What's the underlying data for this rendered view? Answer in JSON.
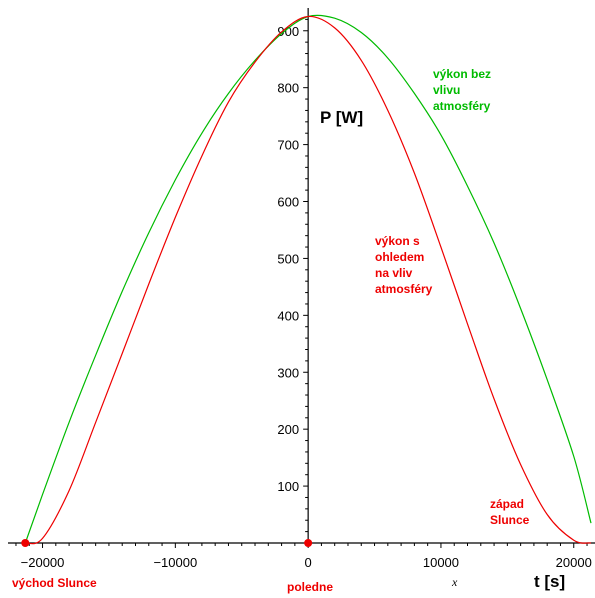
{
  "chart_data": {
    "type": "line",
    "xlabel": "t [s]",
    "ylabel": "P [W]",
    "x_variable_label": "x",
    "xlim": [
      -22600,
      21600
    ],
    "ylim": [
      0,
      940
    ],
    "x_ticks": [
      -20000,
      -10000,
      0,
      10000,
      20000
    ],
    "x_tick_labels": [
      "−20000",
      "−10000",
      "0",
      "10000",
      "20000"
    ],
    "y_ticks": [
      100,
      200,
      300,
      400,
      500,
      600,
      700,
      800,
      900
    ],
    "y_tick_labels": [
      "100",
      "200",
      "300",
      "400",
      "500",
      "600",
      "700",
      "800",
      "900"
    ],
    "grid": false,
    "series": [
      {
        "color": "#00bb00",
        "x": [
          -21300,
          -20000,
          -18000,
          -16000,
          -14000,
          -12000,
          -10000,
          -8000,
          -6000,
          -4000,
          -2000,
          0,
          2000,
          4000,
          6000,
          8000,
          10000,
          12000,
          14000,
          16000,
          18000,
          20000,
          21300
        ],
        "values": [
          0,
          85,
          212,
          330,
          442,
          545,
          638,
          720,
          790,
          848,
          895,
          925,
          922,
          897,
          852,
          790,
          717,
          627,
          527,
          412,
          287,
          152,
          35
        ]
      },
      {
        "color": "#ee0000",
        "x": [
          -21300,
          -20000,
          -18000,
          -16000,
          -14000,
          -12000,
          -10000,
          -8000,
          -6000,
          -4000,
          -2000,
          0,
          2000,
          4000,
          6000,
          8000,
          10000,
          12000,
          14000,
          16000,
          18000,
          20000,
          21300
        ],
        "values": [
          0,
          8,
          92,
          212,
          333,
          455,
          572,
          680,
          775,
          845,
          898,
          925,
          905,
          848,
          760,
          650,
          520,
          385,
          253,
          138,
          50,
          5,
          0
        ]
      }
    ],
    "points": [
      {
        "x": -21300,
        "y": 0,
        "color": "#ee0000"
      },
      {
        "x": 0,
        "y": 0,
        "color": "#ee0000"
      }
    ],
    "annotations": [
      {
        "lines": [
          "výkon bez",
          "vlivu",
          "atmosféry"
        ],
        "color": "#00bb00"
      },
      {
        "lines": [
          "výkon s",
          "ohledem",
          "na vliv",
          "atmosféry"
        ],
        "color": "#ee0000"
      },
      {
        "lines": [
          "západ",
          "Slunce"
        ],
        "color": "#ee0000"
      },
      {
        "lines": [
          "východ Slunce"
        ],
        "color": "#ee0000"
      },
      {
        "lines": [
          "poledne"
        ],
        "color": "#ee0000"
      }
    ]
  }
}
